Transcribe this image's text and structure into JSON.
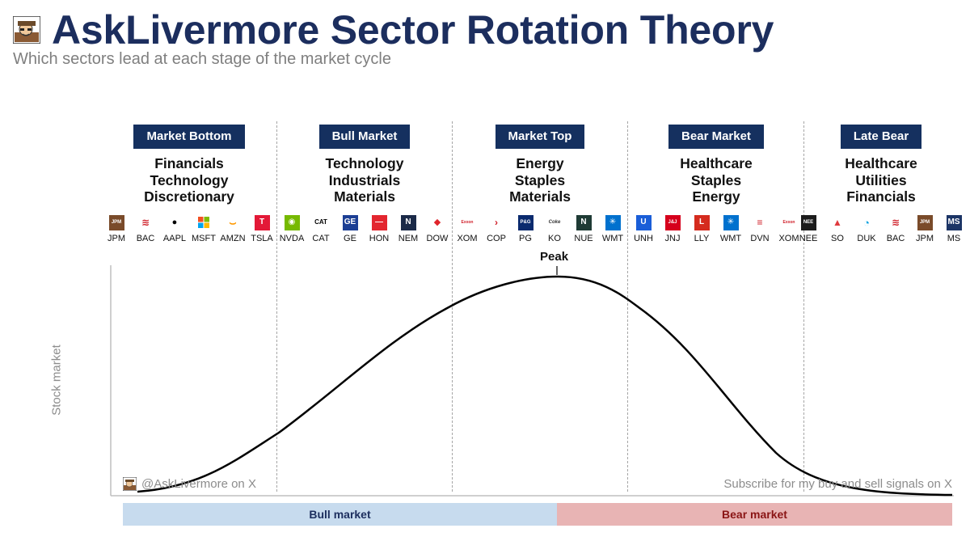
{
  "title": "AskLivermore Sector Rotation Theory",
  "subtitle": "Which sectors lead at each stage of the market cycle",
  "y_axis_label": "Stock market",
  "peak_label": "Peak",
  "credit_left": "@AskLivermore on X",
  "credit_right": "Subscribe for my buy and sell signals on X",
  "phases": {
    "bull": "Bull market",
    "bear": "Bear market"
  },
  "colors": {
    "brand_navy": "#15305f",
    "bull_band": "#c7dbee",
    "bear_band": "#e8b4b4"
  },
  "stages": [
    {
      "label": "Market Bottom",
      "sectors": [
        "Financials",
        "Technology",
        "Discretionary"
      ],
      "tickers": [
        {
          "symbol": "JPM",
          "icon": "jpm-logo",
          "color": "#7a4b2a",
          "glyph": "JPM"
        },
        {
          "symbol": "BAC",
          "icon": "bac-logo",
          "color": "#ffffff",
          "glyph": "≋"
        },
        {
          "symbol": "AAPL",
          "icon": "apple-logo",
          "color": "#ffffff",
          "glyph": "●"
        },
        {
          "symbol": "MSFT",
          "icon": "microsoft-logo",
          "color": "#ffffff",
          "glyph": ""
        },
        {
          "symbol": "AMZN",
          "icon": "amazon-logo",
          "color": "#ffffff",
          "glyph": "⌣"
        },
        {
          "symbol": "TSLA",
          "icon": "tesla-logo",
          "color": "#e31937",
          "glyph": "T"
        }
      ]
    },
    {
      "label": "Bull Market",
      "sectors": [
        "Technology",
        "Industrials",
        "Materials"
      ],
      "tickers": [
        {
          "symbol": "NVDA",
          "icon": "nvidia-logo",
          "color": "#76b900",
          "glyph": "◉"
        },
        {
          "symbol": "CAT",
          "icon": "caterpillar-logo",
          "color": "#ffffff",
          "glyph": "CAT"
        },
        {
          "symbol": "GE",
          "icon": "ge-logo",
          "color": "#1c3f94",
          "glyph": "GE"
        },
        {
          "symbol": "HON",
          "icon": "honeywell-logo",
          "color": "#e3262f",
          "glyph": "—"
        },
        {
          "symbol": "NEM",
          "icon": "newmont-logo",
          "color": "#1b2a48",
          "glyph": "N"
        },
        {
          "symbol": "DOW",
          "icon": "dow-logo",
          "color": "#ffffff",
          "glyph": "◆"
        }
      ]
    },
    {
      "label": "Market Top",
      "sectors": [
        "Energy",
        "Staples",
        "Materials"
      ],
      "tickers": [
        {
          "symbol": "XOM",
          "icon": "exxon-logo",
          "color": "#ffffff",
          "glyph": "Exxon"
        },
        {
          "symbol": "COP",
          "icon": "conocophillips-logo",
          "color": "#ffffff",
          "glyph": "›"
        },
        {
          "symbol": "PG",
          "icon": "pg-logo",
          "color": "#0a2a6e",
          "glyph": "P&G"
        },
        {
          "symbol": "KO",
          "icon": "coca-cola-logo",
          "color": "#ffffff",
          "glyph": "Coke"
        },
        {
          "symbol": "NUE",
          "icon": "nucor-logo",
          "color": "#1f3b35",
          "glyph": "N"
        },
        {
          "symbol": "WMT",
          "icon": "walmart-logo",
          "color": "#0071ce",
          "glyph": "✳"
        }
      ]
    },
    {
      "label": "Bear Market",
      "sectors": [
        "Healthcare",
        "Staples",
        "Energy"
      ],
      "tickers": [
        {
          "symbol": "UNH",
          "icon": "unitedhealth-logo",
          "color": "#1a5ed8",
          "glyph": "U"
        },
        {
          "symbol": "JNJ",
          "icon": "jnj-logo",
          "color": "#d6001c",
          "glyph": "J&J"
        },
        {
          "symbol": "LLY",
          "icon": "lilly-logo",
          "color": "#d52b1e",
          "glyph": "L"
        },
        {
          "symbol": "WMT",
          "icon": "walmart-logo",
          "color": "#0071ce",
          "glyph": "✳"
        },
        {
          "symbol": "DVN",
          "icon": "devon-logo",
          "color": "#ffffff",
          "glyph": "≡"
        },
        {
          "symbol": "XOM",
          "icon": "exxon-logo",
          "color": "#ffffff",
          "glyph": "Exxon"
        }
      ]
    },
    {
      "label": "Late Bear",
      "sectors": [
        "Healthcare",
        "Utilities",
        "Financials"
      ],
      "tickers": [
        {
          "symbol": "NEE",
          "icon": "nextera-logo",
          "color": "#1c1c1c",
          "glyph": "NEE"
        },
        {
          "symbol": "SO",
          "icon": "southern-logo",
          "color": "#ffffff",
          "glyph": "▲"
        },
        {
          "symbol": "DUK",
          "icon": "duke-logo",
          "color": "#ffffff",
          "glyph": "◔"
        },
        {
          "symbol": "BAC",
          "icon": "bac-logo",
          "color": "#ffffff",
          "glyph": "≋"
        },
        {
          "symbol": "JPM",
          "icon": "jpm-logo",
          "color": "#7a4b2a",
          "glyph": "JPM"
        },
        {
          "symbol": "MS",
          "icon": "morgan-stanley-logo",
          "color": "#1c3566",
          "glyph": "MS"
        }
      ]
    }
  ]
}
